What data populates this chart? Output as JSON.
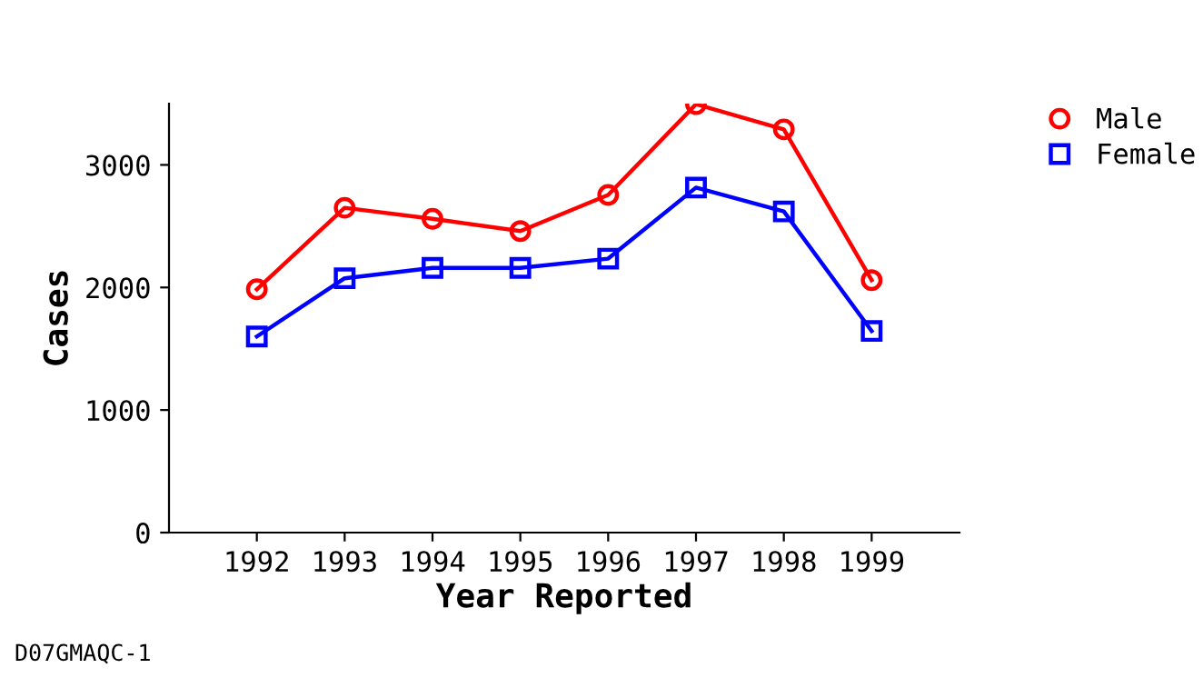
{
  "chart_data": {
    "type": "line",
    "xlabel": "Year Reported",
    "ylabel": "Cases",
    "x": [
      1992,
      1993,
      1994,
      1995,
      1996,
      1997,
      1998,
      1999
    ],
    "series": [
      {
        "name": "Male",
        "color": "#ff0000",
        "marker": "circle",
        "values": [
          1985,
          2650,
          2560,
          2460,
          2755,
          3495,
          3290,
          2060
        ]
      },
      {
        "name": "Female",
        "color": "#0000ff",
        "marker": "square",
        "values": [
          1600,
          2075,
          2160,
          2160,
          2235,
          2815,
          2620,
          1645
        ]
      }
    ],
    "xlim": [
      1991,
      2000
    ],
    "xticks": [
      1992,
      1993,
      1994,
      1995,
      1996,
      1997,
      1998,
      1999
    ],
    "ylim": [
      0,
      3500
    ],
    "yticks": [
      0,
      1000,
      2000,
      3000
    ],
    "grid": false,
    "legend": "top right",
    "line_style": "solid",
    "annotations": [
      "D07GMAQC-1"
    ]
  }
}
